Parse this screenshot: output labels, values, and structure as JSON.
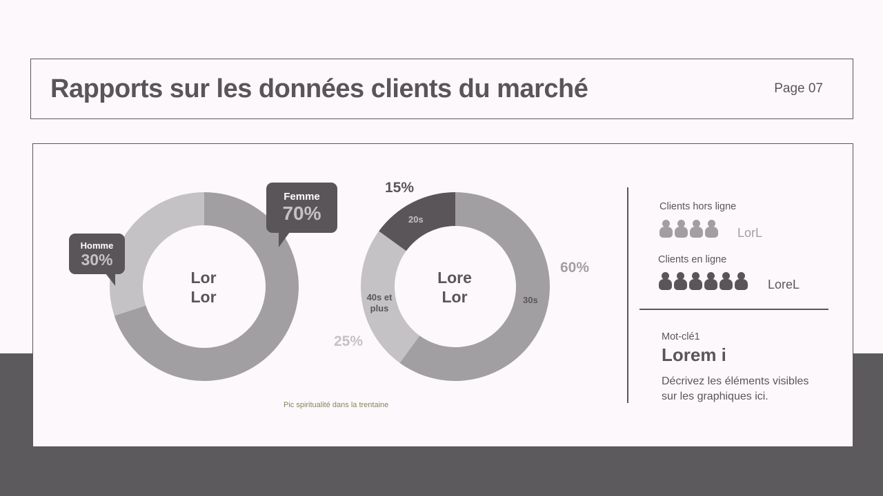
{
  "header": {
    "title": "Rapports sur les données clients du marché",
    "page": "Page 07"
  },
  "colors": {
    "light": "#c4c2c4",
    "mid": "#a29fa2",
    "dark": "#5a5558",
    "background": "#fdf8fc"
  },
  "chart_data": [
    {
      "type": "pie",
      "variant": "donut",
      "center_label": [
        "Lor",
        "Lor"
      ],
      "slices": [
        {
          "label": "Femme",
          "value": 70,
          "display": "70%",
          "color": "#a29fa2"
        },
        {
          "label": "Homme",
          "value": 30,
          "display": "30%",
          "color": "#c4c2c4"
        }
      ]
    },
    {
      "type": "pie",
      "variant": "donut",
      "center_label": [
        "Lore",
        "Lor"
      ],
      "slices": [
        {
          "label": "30s",
          "value": 60,
          "display": "60%",
          "color": "#a29fa2"
        },
        {
          "label": "40s et plus",
          "value": 25,
          "display": "25%",
          "color": "#c4c2c4"
        },
        {
          "label": "20s",
          "value": 15,
          "display": "15%",
          "color": "#5a5558"
        }
      ],
      "caption": "Pic spiritualité dans la trentaine"
    }
  ],
  "side": {
    "offline": {
      "label": "Clients hors ligne",
      "count_icons": 4,
      "value": "LorL",
      "icon": "person-icon"
    },
    "online": {
      "label": "Clients en ligne",
      "count_icons": 6,
      "value": "LoreL",
      "icon": "person-icon"
    },
    "keyword": "Mot-clé1",
    "headline": "Lorem i",
    "description_1": "Décrivez les éléments visibles",
    "description_2": "sur les graphiques ici."
  }
}
